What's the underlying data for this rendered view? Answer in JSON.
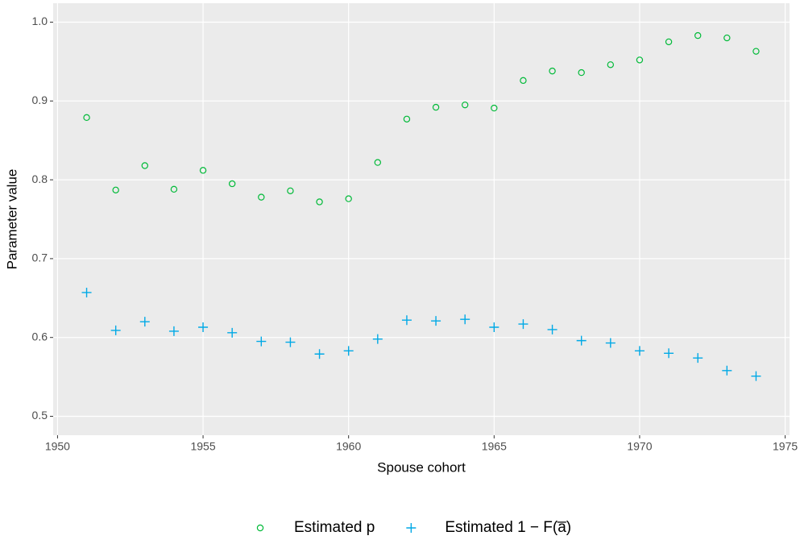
{
  "chart_data": {
    "type": "scatter",
    "x_label": "Spouse cohort",
    "y_label": "Parameter value",
    "x": [
      1951,
      1952,
      1953,
      1954,
      1955,
      1956,
      1957,
      1958,
      1959,
      1960,
      1961,
      1962,
      1963,
      1964,
      1965,
      1966,
      1967,
      1968,
      1969,
      1970,
      1971,
      1972,
      1973,
      1974
    ],
    "series": [
      {
        "name": "Estimated p",
        "color": "#00BA38",
        "marker": "circle",
        "values": [
          0.879,
          0.787,
          0.818,
          0.788,
          0.812,
          0.795,
          0.778,
          0.786,
          0.772,
          0.776,
          0.822,
          0.877,
          0.892,
          0.895,
          0.891,
          0.926,
          0.938,
          0.936,
          0.946,
          0.952,
          0.975,
          0.983,
          0.98,
          0.963
        ]
      },
      {
        "name": "Estimated 1 − F(a̅)",
        "color": "#00A9E6",
        "marker": "plus",
        "values": [
          0.657,
          0.609,
          0.62,
          0.608,
          0.613,
          0.606,
          0.595,
          0.594,
          0.579,
          0.583,
          0.598,
          0.622,
          0.621,
          0.623,
          0.613,
          0.617,
          0.61,
          0.596,
          0.593,
          0.583,
          0.58,
          0.574,
          0.558,
          0.551
        ]
      }
    ],
    "xlim": [
      1949.85,
      1975.15
    ],
    "xticks": [
      1950,
      1955,
      1960,
      1965,
      1970,
      1975
    ],
    "ylim": [
      0.476,
      1.024
    ],
    "yticks": [
      {
        "value": 0.5,
        "label": "0.5"
      },
      {
        "value": 0.6,
        "label": "0.6"
      },
      {
        "value": 0.7,
        "label": "0.7"
      },
      {
        "value": 0.8,
        "label": "0.8"
      },
      {
        "value": 0.9,
        "label": "0.9"
      },
      {
        "value": 1.0,
        "label": "1.0"
      }
    ],
    "grid": true,
    "legend": "bottom"
  }
}
